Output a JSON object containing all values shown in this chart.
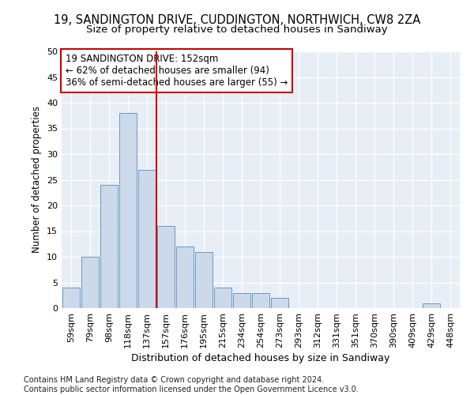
{
  "title1": "19, SANDINGTON DRIVE, CUDDINGTON, NORTHWICH, CW8 2ZA",
  "title2": "Size of property relative to detached houses in Sandiway",
  "xlabel": "Distribution of detached houses by size in Sandiway",
  "ylabel": "Number of detached properties",
  "bar_labels": [
    "59sqm",
    "79sqm",
    "98sqm",
    "118sqm",
    "137sqm",
    "157sqm",
    "176sqm",
    "195sqm",
    "215sqm",
    "234sqm",
    "254sqm",
    "273sqm",
    "293sqm",
    "312sqm",
    "331sqm",
    "351sqm",
    "370sqm",
    "390sqm",
    "409sqm",
    "429sqm",
    "448sqm"
  ],
  "bar_values": [
    4,
    10,
    24,
    38,
    27,
    16,
    12,
    11,
    4,
    3,
    3,
    2,
    0,
    0,
    0,
    0,
    0,
    0,
    0,
    1,
    0
  ],
  "bar_color": "#ccd9ea",
  "bar_edge_color": "#6899c4",
  "vline_color": "#cc0000",
  "annotation_text": "19 SANDINGTON DRIVE: 152sqm\n← 62% of detached houses are smaller (94)\n36% of semi-detached houses are larger (55) →",
  "annotation_box_color": "#ffffff",
  "annotation_box_edge": "#cc0000",
  "ylim": [
    0,
    50
  ],
  "yticks": [
    0,
    5,
    10,
    15,
    20,
    25,
    30,
    35,
    40,
    45,
    50
  ],
  "footer": "Contains HM Land Registry data © Crown copyright and database right 2024.\nContains public sector information licensed under the Open Government Licence v3.0.",
  "plot_bg_color": "#e8eef5",
  "grid_color": "#ffffff",
  "title1_fontsize": 10.5,
  "title2_fontsize": 9.5,
  "xlabel_fontsize": 9,
  "ylabel_fontsize": 8.5,
  "tick_fontsize": 8,
  "ann_fontsize": 8.5,
  "footer_fontsize": 7
}
